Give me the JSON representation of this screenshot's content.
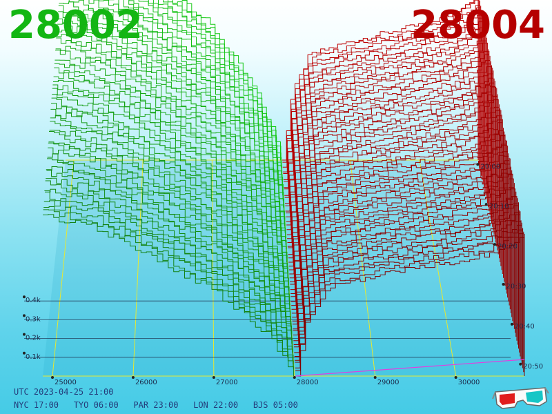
{
  "header": {
    "bid_price": "28002",
    "ask_price": "28004"
  },
  "colors": {
    "bid": "#13b613",
    "ask": "#b50000",
    "grid": "#e8e830",
    "baseline_magenta": "#e040e0"
  },
  "footer": {
    "utc": "UTC 2023-04-25 21:00",
    "zones": [
      {
        "city": "NYC",
        "time": "17:00"
      },
      {
        "city": "TYO",
        "time": "06:00"
      },
      {
        "city": "PAR",
        "time": "23:00"
      },
      {
        "city": "LON",
        "time": "22:00"
      },
      {
        "city": "BJS",
        "time": "05:00"
      }
    ]
  },
  "icons": {
    "glasses": "3d-glasses-icon"
  },
  "chart_data": {
    "type": "area",
    "view": "3d-depth-waterfall",
    "x_axis": {
      "ticks": [
        25000,
        26000,
        27000,
        28000,
        29000,
        30000
      ],
      "range": [
        24880,
        30850
      ]
    },
    "volume_axis": {
      "ticks": [
        "0.1k",
        "0.2k",
        "0.3k",
        "0.4k"
      ],
      "range": [
        0,
        500
      ]
    },
    "time_axis": {
      "ticks": [
        "20:00",
        "20:10",
        "20:20",
        "20:30",
        "20:40",
        "20:50"
      ],
      "range": [
        "19:55",
        "21:00"
      ]
    },
    "snapshot_count": 56,
    "mid_price": 28003,
    "bids": {
      "name": "bid",
      "points": [
        [
          27990,
          0
        ],
        [
          27850,
          60
        ],
        [
          27600,
          130
        ],
        [
          27000,
          240
        ],
        [
          26500,
          300
        ],
        [
          26000,
          360
        ],
        [
          25500,
          415
        ],
        [
          24880,
          445
        ]
      ]
    },
    "asks": {
      "name": "ask",
      "points": [
        [
          28015,
          0
        ],
        [
          28150,
          120
        ],
        [
          28400,
          190
        ],
        [
          29000,
          215
        ],
        [
          29500,
          230
        ],
        [
          30000,
          245
        ],
        [
          30400,
          260
        ],
        [
          30850,
          300
        ]
      ]
    }
  }
}
